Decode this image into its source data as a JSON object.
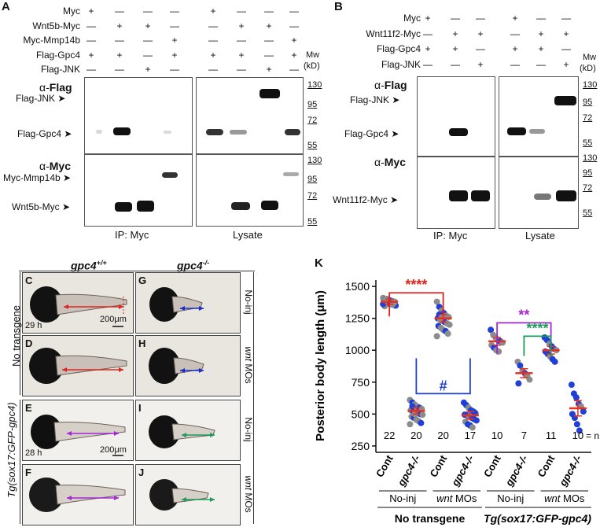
{
  "panelA": {
    "letter": "A",
    "rows": [
      "Myc",
      "Wnt5b-Myc",
      "Myc-Mmp14b",
      "Flag-Gpc4",
      "Flag-JNK"
    ],
    "signs": [
      [
        "+",
        "—",
        "—",
        "—",
        "+",
        "—",
        "—",
        "—"
      ],
      [
        "—",
        "+",
        "+",
        "—",
        "—",
        "+",
        "+",
        "—"
      ],
      [
        "—",
        "—",
        "—",
        "+",
        "—",
        "—",
        "—",
        "+"
      ],
      [
        "+",
        "+",
        "—",
        "+",
        "+",
        "+",
        "—",
        "+"
      ],
      [
        "—",
        "—",
        "+",
        "—",
        "—",
        "—",
        "+",
        "—"
      ]
    ],
    "mw_header": "Mw",
    "mw_unit": "(kD)",
    "flag_probe_prefix": "α-",
    "flag_probe": "Flag",
    "myc_probe_prefix": "α-",
    "myc_probe": "Myc",
    "band_flag_jnk": "Flag-JNK",
    "band_flag_gpc4": "Flag-Gpc4",
    "band_myc_mmp14b": "Myc-Mmp14b",
    "band_wnt5b_myc": "Wnt5b-Myc",
    "mw_top": [
      "130",
      "95",
      "72",
      "55"
    ],
    "mw_bottom": [
      "130",
      "95",
      "72",
      "55"
    ],
    "ip_label": "IP: Myc",
    "lysate_label": "Lysate"
  },
  "panelB": {
    "letter": "B",
    "rows": [
      "Myc",
      "Wnt11f2-Myc",
      "Flag-Gpc4",
      "Flag-JNK"
    ],
    "signs": [
      [
        "+",
        "—",
        "—",
        "+",
        "—",
        "—"
      ],
      [
        "—",
        "+",
        "+",
        "—",
        "+",
        "+"
      ],
      [
        "+",
        "+",
        "—",
        "+",
        "+",
        "—"
      ],
      [
        "—",
        "—",
        "+",
        "—",
        "—",
        "+"
      ]
    ],
    "mw_header": "Mw",
    "mw_unit": "(kD)",
    "flag_probe_prefix": "α-",
    "flag_probe": "Flag",
    "myc_probe_prefix": "α-",
    "myc_probe": "Myc",
    "band_flag_jnk": "Flag-JNK",
    "band_flag_gpc4": "Flag-Gpc4",
    "band_wnt11f2_myc": "Wnt11f2-Myc",
    "mw_top": [
      "130",
      "95",
      "72",
      "55"
    ],
    "mw_bottom": [
      "130",
      "95",
      "72",
      "55"
    ],
    "ip_label": "IP: Myc",
    "lysate_label": "Lysate"
  },
  "panelEmbryos": {
    "col1_header": "gpc4",
    "col1_sup": "+/+",
    "col2_header": "gpc4",
    "col2_sup": "-/-",
    "left_label_top": "No transgene",
    "left_label_bottom": "Tg(sox17:GFP-gpc4)",
    "letters": [
      "C",
      "D",
      "E",
      "F",
      "G",
      "H",
      "I",
      "J"
    ],
    "right_noinj_1": "No-inj",
    "right_wnt_1_it": "wnt",
    "right_wnt_1_rest": " MOs",
    "right_noinj_2": "No-inj",
    "right_wnt_2_it": "wnt",
    "right_wnt_2_rest": " MOs",
    "time_top": "29 h",
    "time_bottom": "28 h",
    "scale_top": "200μm",
    "scale_bottom": "200μm"
  },
  "colors": {
    "red_arrow": "#e0241b",
    "blue_arrow": "#1a2fc8",
    "purple_arrow": "#a526d6",
    "green_arrow": "#1b9a5a",
    "dot_gray": "#8c8c8c",
    "dot_blue": "#1f3fd6",
    "mean_red": "#e8301e"
  },
  "panelK": {
    "letter": "K",
    "chart_data": {
      "type": "scatter",
      "ylabel": "Posterior body length (μm)",
      "ylim": [
        200,
        1550
      ],
      "yticks": [
        250,
        500,
        750,
        1000,
        1250,
        1500
      ],
      "categories": [
        "Cont",
        "gpc4-/-",
        "Cont",
        "gpc4-/-",
        "Cont",
        "gpc4-/-",
        "Cont",
        "gpc4-/-"
      ],
      "category_italic": [
        false,
        true,
        false,
        true,
        false,
        true,
        false,
        true
      ],
      "n_values": [
        "22",
        "20",
        "20",
        "17",
        "10",
        "7",
        "11",
        "10"
      ],
      "n_suffix": "= n",
      "means": [
        1380,
        525,
        1250,
        490,
        1070,
        820,
        1000,
        545
      ],
      "sem": [
        20,
        25,
        30,
        30,
        30,
        35,
        30,
        60
      ],
      "points": [
        [
          1410,
          1400,
          1395,
          1390,
          1385,
          1380,
          1375,
          1370,
          1365,
          1360,
          1355,
          1350,
          1345,
          1402,
          1392,
          1382,
          1372,
          1362,
          1398,
          1378,
          1368,
          1358
        ],
        [
          610,
          590,
          575,
          560,
          550,
          540,
          530,
          520,
          515,
          505,
          500,
          495,
          480,
          470,
          455,
          445,
          430,
          420,
          560,
          500
        ],
        [
          1380,
          1340,
          1310,
          1290,
          1270,
          1260,
          1250,
          1240,
          1230,
          1220,
          1210,
          1200,
          1190,
          1175,
          1160,
          1150,
          1130,
          1110,
          1280,
          1255
        ],
        [
          590,
          570,
          550,
          530,
          520,
          505,
          495,
          490,
          480,
          470,
          460,
          450,
          440,
          420,
          410,
          395,
          510
        ],
        [
          1160,
          1120,
          1100,
          1080,
          1070,
          1060,
          1040,
          1020,
          1000,
          990
        ],
        [
          910,
          880,
          840,
          820,
          800,
          770,
          740
        ],
        [
          1100,
          1080,
          1050,
          1030,
          1010,
          1000,
          990,
          970,
          950,
          930,
          910
        ],
        [
          730,
          660,
          630,
          580,
          560,
          520,
          500,
          470,
          420,
          370
        ]
      ],
      "point_colors": [
        [
          "g",
          "b",
          "g",
          "b",
          "g",
          "g",
          "b",
          "g",
          "b",
          "g",
          "g",
          "b",
          "g",
          "g",
          "b",
          "g",
          "g",
          "b",
          "g",
          "g",
          "b",
          "g"
        ],
        [
          "g",
          "b",
          "g",
          "g",
          "b",
          "g",
          "g",
          "b",
          "g",
          "g",
          "b",
          "g",
          "g",
          "b",
          "g",
          "g",
          "b",
          "g",
          "b",
          "g"
        ],
        [
          "g",
          "b",
          "g",
          "b",
          "g",
          "g",
          "b",
          "g",
          "g",
          "b",
          "g",
          "g",
          "b",
          "g",
          "g",
          "b",
          "g",
          "g",
          "b",
          "g"
        ],
        [
          "b",
          "b",
          "g",
          "b",
          "b",
          "g",
          "b",
          "b",
          "g",
          "b",
          "b",
          "b",
          "g",
          "b",
          "b",
          "g",
          "b"
        ],
        [
          "b",
          "g",
          "g",
          "g",
          "b",
          "g",
          "g",
          "b",
          "g",
          "g"
        ],
        [
          "g",
          "b",
          "g",
          "b",
          "g",
          "g",
          "b"
        ],
        [
          "b",
          "b",
          "g",
          "b",
          "b",
          "g",
          "b",
          "b",
          "g",
          "b",
          "b"
        ],
        [
          "b",
          "b",
          "b",
          "b",
          "g",
          "b",
          "b",
          "b",
          "b",
          "b"
        ]
      ],
      "group_labels": [
        {
          "text": "No-inj",
          "italic_part": ""
        },
        {
          "text": " MOs",
          "italic_part": "wnt"
        },
        {
          "text": "No-inj",
          "italic_part": ""
        },
        {
          "text": " MOs",
          "italic_part": "wnt"
        }
      ],
      "bottom_labels": [
        "No transgene",
        "Tg(sox17:GFP-gpc4)"
      ],
      "significance": [
        {
          "label": "****",
          "color": "#e0241b"
        },
        {
          "label": "#",
          "color": "#1f3fd6"
        },
        {
          "label": "**",
          "color": "#a526d6"
        },
        {
          "label": "****",
          "color": "#1b9a5a"
        }
      ]
    }
  }
}
